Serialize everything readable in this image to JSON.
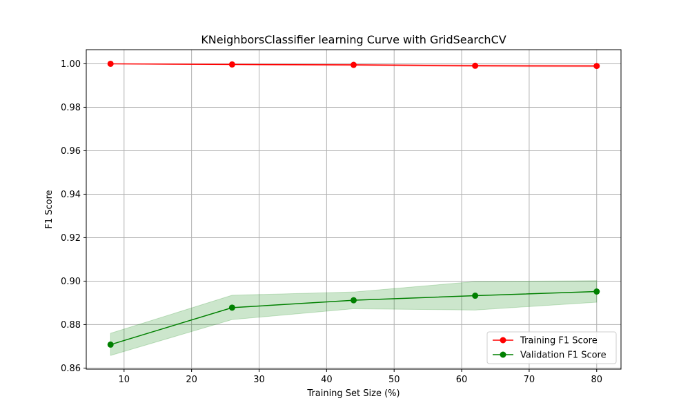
{
  "chart_data": {
    "type": "line",
    "title": "KNeighborsClassifier learning Curve with GridSearchCV",
    "xlabel": "Training Set Size (%)",
    "ylabel": "F1 Score",
    "x": [
      8,
      26,
      44,
      62,
      80
    ],
    "xlim": [
      4.4,
      83.6
    ],
    "ylim": [
      0.8595,
      1.0065
    ],
    "xticks": [
      10,
      20,
      30,
      40,
      50,
      60,
      70,
      80
    ],
    "yticks": [
      0.86,
      0.88,
      0.9,
      0.92,
      0.94,
      0.96,
      0.98,
      1.0
    ],
    "xtick_labels": [
      "10",
      "20",
      "30",
      "40",
      "50",
      "60",
      "70",
      "80"
    ],
    "ytick_labels": [
      "0.86",
      "0.88",
      "0.90",
      "0.92",
      "0.94",
      "0.96",
      "0.98",
      "1.00"
    ],
    "grid": true,
    "legend_position": "lower-right",
    "series": [
      {
        "name": "Training F1 Score",
        "color": "#ff0000",
        "values": [
          1.0,
          0.9997,
          0.9995,
          0.9991,
          0.999
        ],
        "band_lower": [
          1.0,
          0.9995,
          0.9992,
          0.9987,
          0.9986
        ],
        "band_upper": [
          1.0,
          0.9999,
          0.9998,
          0.9995,
          0.9994
        ]
      },
      {
        "name": "Validation F1 Score",
        "color": "#008000",
        "values": [
          0.8708,
          0.8878,
          0.8912,
          0.8933,
          0.8952
        ],
        "band_lower": [
          0.8658,
          0.8823,
          0.8873,
          0.8867,
          0.8903
        ],
        "band_upper": [
          0.876,
          0.8935,
          0.895,
          0.8998,
          0.9002
        ]
      }
    ]
  }
}
